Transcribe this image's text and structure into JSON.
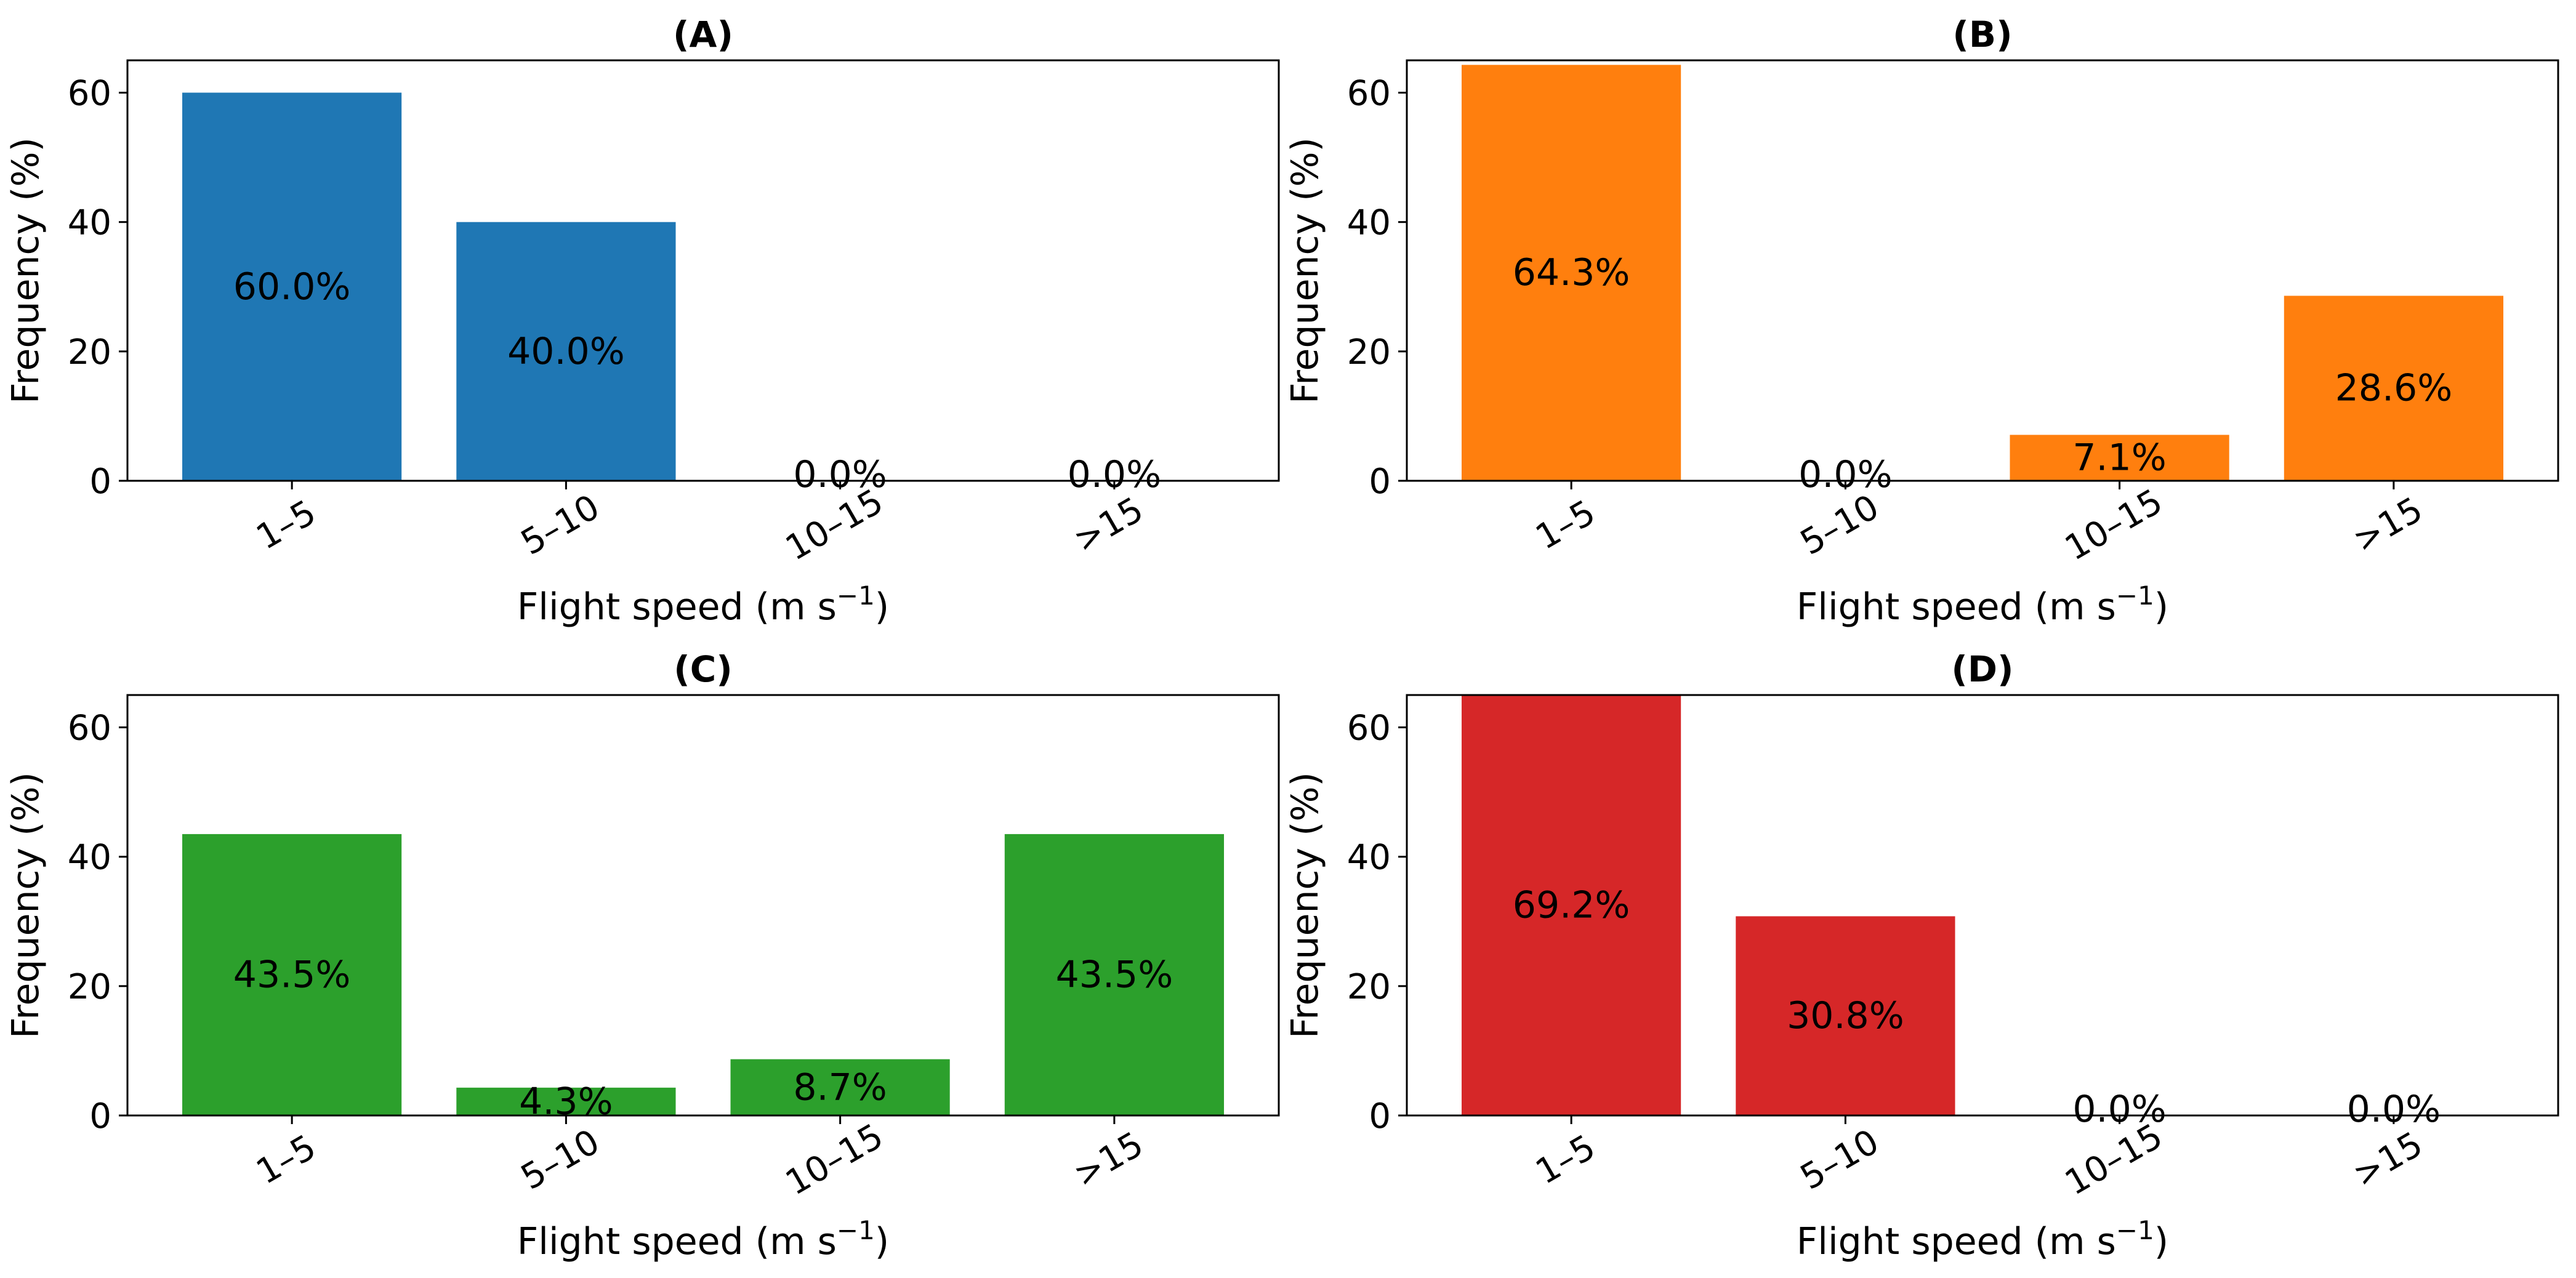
{
  "chart_data": [
    {
      "type": "bar",
      "panel": "A",
      "title": "(A)",
      "categories": [
        "1–5",
        "5–10",
        "10–15",
        ">15"
      ],
      "values": [
        60.0,
        40.0,
        0.0,
        0.0
      ],
      "labels": [
        "60.0%",
        "40.0%",
        "0.0%",
        "0.0%"
      ],
      "color": "#1f77b4",
      "xlabel": "Flight speed (m s",
      "xlabel_unit_sup": "−1",
      "xlabel_close": ")",
      "ylabel": "Frequency (%)",
      "ylim": [
        0,
        65
      ],
      "yticks": [
        0,
        20,
        40,
        60
      ],
      "ytick_labels": [
        "0",
        "20",
        "40",
        "60"
      ]
    },
    {
      "type": "bar",
      "panel": "B",
      "title": "(B)",
      "categories": [
        "1–5",
        "5–10",
        "10–15",
        ">15"
      ],
      "values": [
        64.3,
        0.0,
        7.1,
        28.6
      ],
      "labels": [
        "64.3%",
        "0.0%",
        "7.1%",
        "28.6%"
      ],
      "color": "#ff7f0e",
      "xlabel": "Flight speed (m s",
      "xlabel_unit_sup": "−1",
      "xlabel_close": ")",
      "ylabel": "Frequency (%)",
      "ylim": [
        0,
        65
      ],
      "yticks": [
        0,
        20,
        40,
        60
      ],
      "ytick_labels": [
        "0",
        "20",
        "40",
        "60"
      ]
    },
    {
      "type": "bar",
      "panel": "C",
      "title": "(C)",
      "categories": [
        "1–5",
        "5–10",
        "10–15",
        ">15"
      ],
      "values": [
        43.5,
        4.3,
        8.7,
        43.5
      ],
      "labels": [
        "43.5%",
        "4.3%",
        "8.7%",
        "43.5%"
      ],
      "color": "#2ca02c",
      "xlabel": "Flight speed (m s",
      "xlabel_unit_sup": "−1",
      "xlabel_close": ")",
      "ylabel": "Frequency (%)",
      "ylim": [
        0,
        65
      ],
      "yticks": [
        0,
        20,
        40,
        60
      ],
      "ytick_labels": [
        "0",
        "20",
        "40",
        "60"
      ]
    },
    {
      "type": "bar",
      "panel": "D",
      "title": "(D)",
      "categories": [
        "1–5",
        "5–10",
        "10–15",
        ">15"
      ],
      "values": [
        69.2,
        30.8,
        0.0,
        0.0
      ],
      "labels": [
        "69.2%",
        "30.8%",
        "0.0%",
        "0.0%"
      ],
      "color": "#d62728",
      "xlabel": "Flight speed (m s",
      "xlabel_unit_sup": "−1",
      "xlabel_close": ")",
      "ylabel": "Frequency (%)",
      "ylim": [
        0,
        65
      ],
      "yticks": [
        0,
        20,
        40,
        60
      ],
      "ytick_labels": [
        "0",
        "20",
        "40",
        "60"
      ]
    }
  ]
}
